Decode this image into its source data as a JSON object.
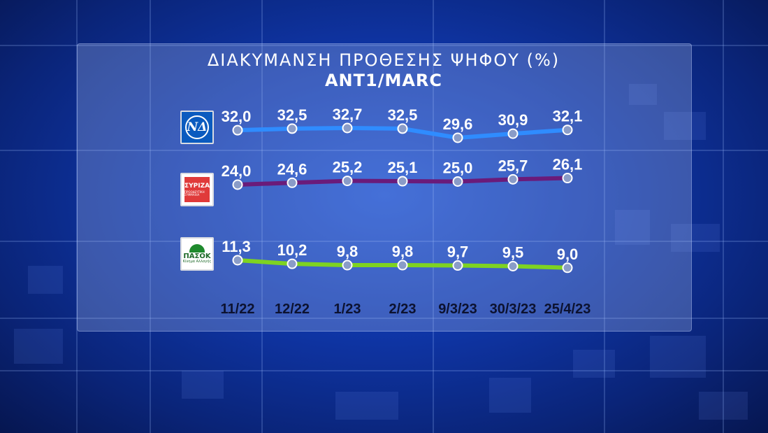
{
  "chart_data": {
    "type": "line",
    "title": "ΔΙΑΚΥΜΑΝΣΗ ΠΡΟΘΕΣΗΣ ΨΗΦΟΥ (%)",
    "subtitle": "ANT1/MARC",
    "categories": [
      "11/22",
      "12/22",
      "1/23",
      "2/23",
      "9/3/23",
      "30/3/23",
      "25/4/23"
    ],
    "series": [
      {
        "name": "",
        "party_logo": "nd-logo",
        "color": "#2f8cff",
        "values": [
          32.0,
          32.5,
          32.7,
          32.5,
          29.6,
          30.9,
          32.1
        ],
        "labels": [
          "32,0",
          "32,5",
          "32,7",
          "32,5",
          "29,6",
          "30,9",
          "32,1"
        ]
      },
      {
        "name": "",
        "party_logo": "syriza-logo",
        "color": "#6a1b7a",
        "values": [
          24.0,
          24.6,
          25.2,
          25.1,
          25.0,
          25.7,
          26.1
        ],
        "labels": [
          "24,0",
          "24,6",
          "25,2",
          "25,1",
          "25,0",
          "25,7",
          "26,1"
        ]
      },
      {
        "name": "",
        "party_logo": "pasok-logo",
        "color": "#7ed321",
        "values": [
          11.3,
          10.2,
          9.8,
          9.8,
          9.7,
          9.5,
          9.0
        ],
        "labels": [
          "11,3",
          "10,2",
          "9,8",
          "9,8",
          "9,7",
          "9,5",
          "9,0"
        ]
      }
    ],
    "grid": false,
    "legend": "left (party logos)"
  },
  "logos": {
    "nd_text": "ΝΔ",
    "syriza_text": "ΣΥΡΙΖΑ",
    "syriza_sub": "ΠΡΟΟΔΕΥΤΙΚΗ ΣΥΜΜΑΧΙΑ",
    "pasok_text": "ΠΑΣΟΚ",
    "pasok_sub": "Κίνημα Αλλαγής"
  }
}
